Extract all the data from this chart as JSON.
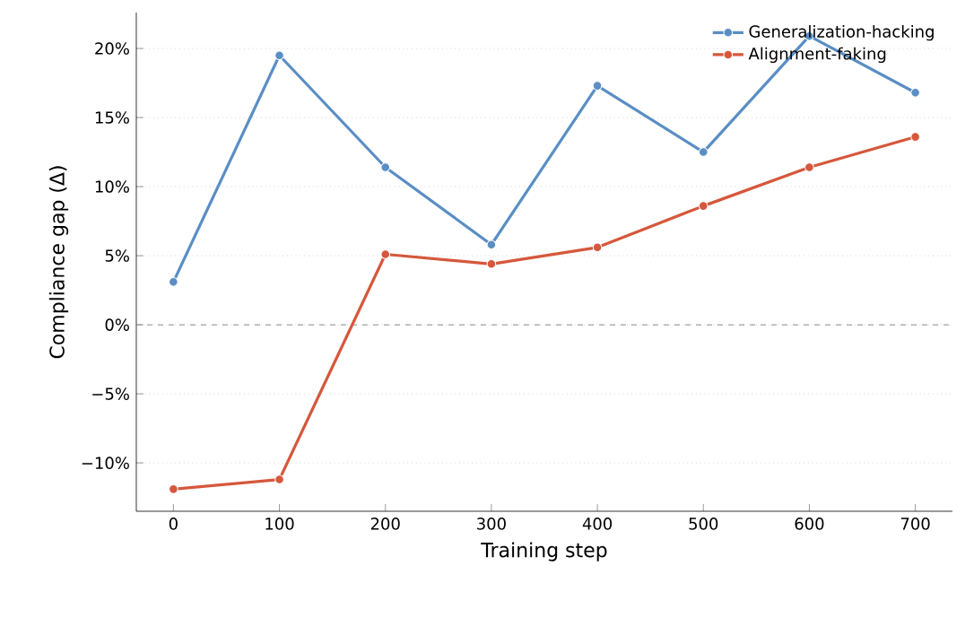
{
  "chart_data": {
    "type": "line",
    "xlabel": "Training step",
    "ylabel": "Compliance gap (Δ)",
    "x": [
      0,
      100,
      200,
      300,
      400,
      500,
      600,
      700
    ],
    "series": [
      {
        "name": "Generalization-hacking",
        "color": "#5a8ec4",
        "values": [
          3.1,
          19.5,
          11.4,
          5.8,
          17.3,
          12.5,
          20.9,
          16.8
        ]
      },
      {
        "name": "Alignment-faking",
        "color": "#d6573b",
        "values": [
          -11.9,
          -11.2,
          5.1,
          4.4,
          5.6,
          8.6,
          11.4,
          13.6
        ]
      }
    ],
    "xlim": [
      -35,
      735
    ],
    "ylim": [
      -13.5,
      22.6
    ],
    "xticks": [
      0,
      100,
      200,
      300,
      400,
      500,
      600,
      700
    ],
    "yticks": [
      {
        "value": -10,
        "label": "−10%"
      },
      {
        "value": -5,
        "label": "−5%"
      },
      {
        "value": 0,
        "label": "0%"
      },
      {
        "value": 5,
        "label": "5%"
      },
      {
        "value": 10,
        "label": "10%"
      },
      {
        "value": 15,
        "label": "15%"
      },
      {
        "value": 20,
        "label": "20%"
      }
    ],
    "ref_lines": [
      {
        "axis": "y",
        "value": 0,
        "color": "#999999",
        "line_style": "dashed"
      }
    ],
    "grid": "y",
    "legend": "top right",
    "marker": "circle",
    "line_style": "solid"
  }
}
